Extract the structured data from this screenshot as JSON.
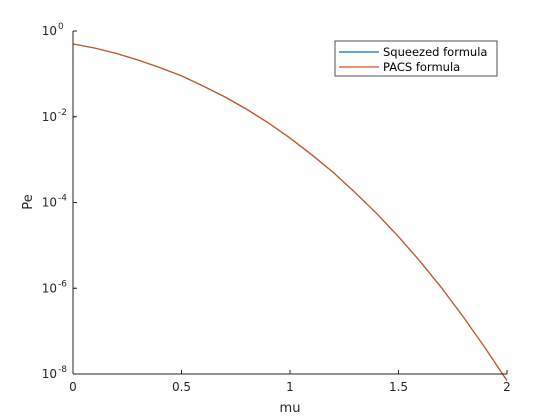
{
  "chart_data": {
    "type": "line",
    "xlabel": "mu",
    "ylabel": "Pe",
    "xlim": [
      0,
      2
    ],
    "ylim": [
      1e-08,
      1
    ],
    "yscale": "log",
    "grid": false,
    "legend_position": "top-right",
    "x_ticks": [
      0,
      0.5,
      1,
      1.5,
      2
    ],
    "x_tick_labels": [
      "0",
      "0.5",
      "1",
      "1.5",
      "2"
    ],
    "y_ticks": [
      1,
      0.01,
      0.0001,
      1e-06,
      1e-08
    ],
    "y_tick_labels": [
      {
        "base": "10",
        "exp": "0"
      },
      {
        "base": "10",
        "exp": "-2"
      },
      {
        "base": "10",
        "exp": "-4"
      },
      {
        "base": "10",
        "exp": "-6"
      },
      {
        "base": "10",
        "exp": "-8"
      }
    ],
    "series": [
      {
        "name": "Squeezed formula",
        "color": "#0072BD",
        "x": [
          0,
          0.1,
          0.2,
          0.3,
          0.4,
          0.5,
          0.6,
          0.7,
          0.8,
          0.9,
          1.0,
          1.1,
          1.2,
          1.3,
          1.4,
          1.5,
          1.6,
          1.7,
          1.8,
          1.9,
          2.0
        ],
        "y": [
          0.5,
          0.4,
          0.3,
          0.21,
          0.14,
          0.09,
          0.052,
          0.029,
          0.015,
          0.0072,
          0.0032,
          0.0013,
          0.0005,
          0.00017,
          5.5e-05,
          1.6e-05,
          4.2e-06,
          1e-06,
          2.1e-07,
          4e-08,
          7e-09
        ]
      },
      {
        "name": "PACS formula",
        "color": "#D95319",
        "x": [
          0,
          0.1,
          0.2,
          0.3,
          0.4,
          0.5,
          0.6,
          0.7,
          0.8,
          0.9,
          1.0,
          1.1,
          1.2,
          1.3,
          1.4,
          1.5,
          1.6,
          1.7,
          1.8,
          1.9,
          2.0
        ],
        "y": [
          0.5,
          0.4,
          0.3,
          0.21,
          0.14,
          0.09,
          0.052,
          0.029,
          0.015,
          0.0072,
          0.0032,
          0.0013,
          0.0005,
          0.00017,
          5.5e-05,
          1.6e-05,
          4.2e-06,
          1e-06,
          2.1e-07,
          4e-08,
          7e-09
        ]
      }
    ]
  }
}
